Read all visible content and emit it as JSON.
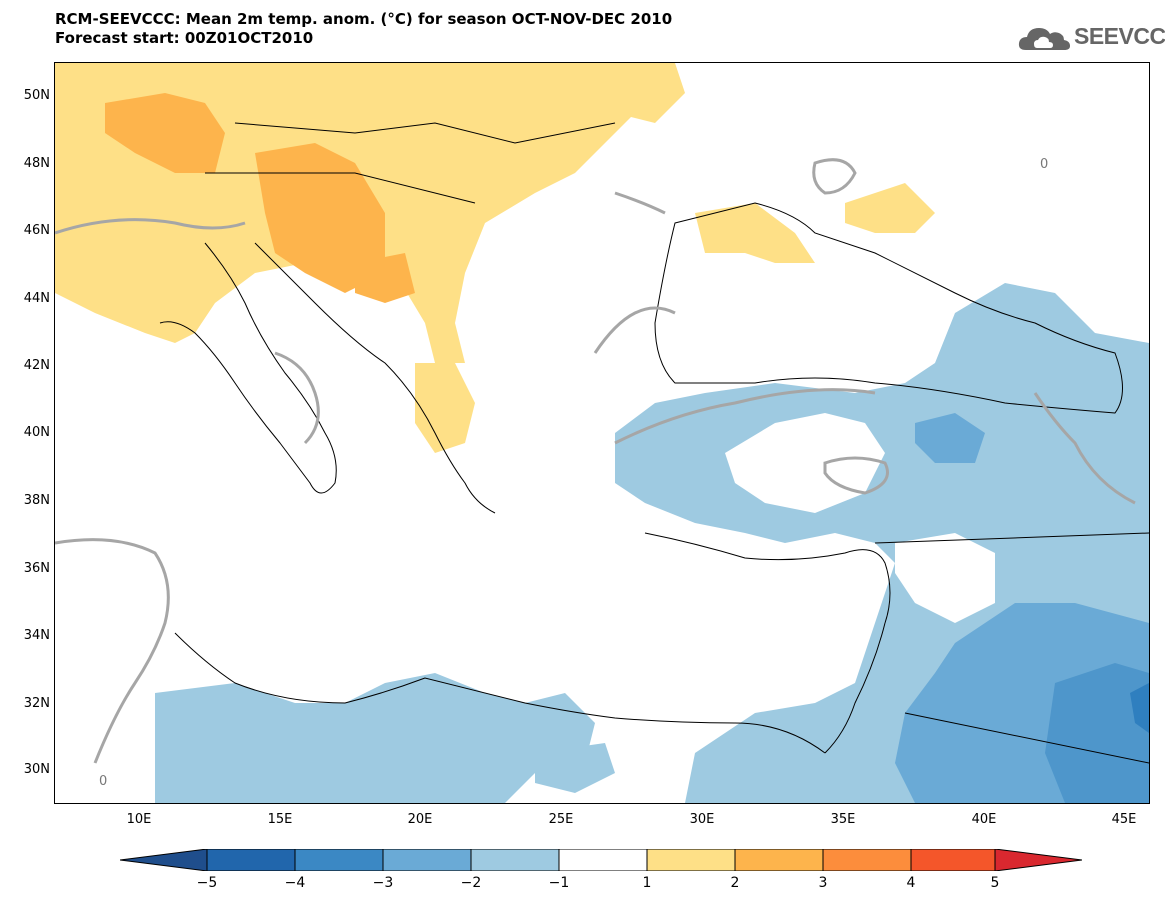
{
  "title": {
    "line1": "RCM-SEEVCCC: Mean 2m temp. anom. (°C) for season OCT-NOV-DEC 2010",
    "line2": "Forecast start: 00Z01OCT2010"
  },
  "logo": {
    "text": "SEEVCCC",
    "icon": "cloud-icon"
  },
  "map": {
    "lat_labels": [
      "50N",
      "48N",
      "46N",
      "44N",
      "42N",
      "40N",
      "38N",
      "36N",
      "34N",
      "32N",
      "30N"
    ],
    "lon_labels": [
      "10E",
      "15E",
      "20E",
      "25E",
      "30E",
      "35E",
      "40E",
      "45E"
    ],
    "contour_label": "0"
  },
  "colorbar": {
    "labels": [
      "−5",
      "−4",
      "−3",
      "−2",
      "−1",
      "1",
      "2",
      "3",
      "4",
      "5"
    ],
    "colors": [
      "#2166ac",
      "#2f7fbf",
      "#4e96cb",
      "#6aaad6",
      "#9ecae1",
      "#ffffff",
      "#fee087",
      "#fdb44c",
      "#fc8d3c",
      "#f4562a",
      "#d9282f"
    ]
  }
}
